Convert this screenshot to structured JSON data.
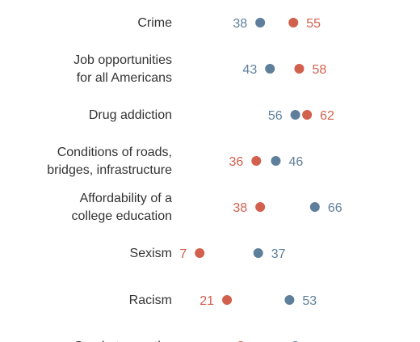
{
  "chart_data": {
    "type": "scatter",
    "title": "",
    "xlabel": "",
    "ylabel": "",
    "xlim": [
      0,
      100
    ],
    "colors": {
      "series_a": "#5e7f9b",
      "series_b": "#d1604d"
    },
    "categories": [
      [
        "Crime"
      ],
      [
        "Job opportunities",
        "for all Americans"
      ],
      [
        "Drug addiction"
      ],
      [
        "Conditions of roads,",
        "bridges, infrastructure"
      ],
      [
        "Affordability of a",
        "college education"
      ],
      [
        "Sexism"
      ],
      [
        "Racism"
      ],
      [
        "Gap between the"
      ]
    ],
    "series": [
      {
        "color": "#5e7f9b",
        "values": [
          38,
          43,
          56,
          46,
          66,
          37,
          53,
          56
        ]
      },
      {
        "color": "#d1604d",
        "values": [
          55,
          58,
          62,
          36,
          38,
          7,
          21,
          28
        ]
      }
    ]
  }
}
